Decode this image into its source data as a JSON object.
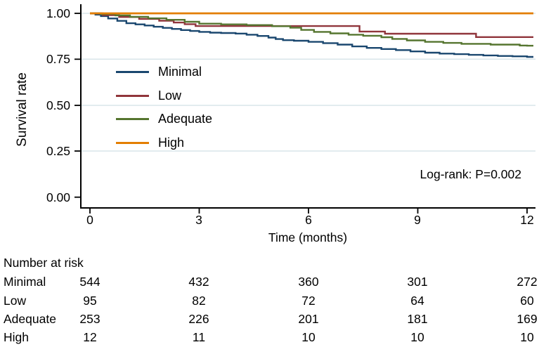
{
  "figure": {
    "ylabel": "Survival rate",
    "xlabel": "Time (months)",
    "annotation": "Log-rank: P=0.002",
    "y_tick_labels": [
      "1.00",
      "0.75",
      "0.50",
      "0.25",
      "0.00"
    ],
    "x_tick_labels": [
      "0",
      "3",
      "6",
      "9",
      "12"
    ]
  },
  "legend": {
    "items": [
      {
        "label": "Minimal"
      },
      {
        "label": "Low"
      },
      {
        "label": "Adequate"
      },
      {
        "label": "High"
      }
    ]
  },
  "risk_table": {
    "title": "Number at risk",
    "time_points": [
      0,
      3,
      6,
      9,
      12
    ],
    "rows": [
      {
        "label": "Minimal",
        "values": [
          544,
          432,
          360,
          301,
          272
        ]
      },
      {
        "label": "Low",
        "values": [
          95,
          82,
          72,
          64,
          60
        ]
      },
      {
        "label": "Adequate",
        "values": [
          253,
          226,
          201,
          181,
          169
        ]
      },
      {
        "label": "High",
        "values": [
          12,
          11,
          10,
          10,
          10
        ]
      }
    ]
  },
  "chart_data": {
    "type": "line",
    "subtype": "kaplan-meier-step",
    "title": "",
    "xlabel": "Time (months)",
    "ylabel": "Survival rate",
    "xlim": [
      0,
      12
    ],
    "ylim": [
      0.0,
      1.0
    ],
    "x_ticks": [
      0,
      3,
      6,
      9,
      12
    ],
    "y_ticks": [
      0.0,
      0.25,
      0.5,
      0.75,
      1.0
    ],
    "grid": "horizontal",
    "gridline_color": "#d9e6ea",
    "legend_position": "inside-upper-left",
    "annotation": "Log-rank: P=0.002",
    "series": [
      {
        "name": "Minimal",
        "color": "#1a476f",
        "points": [
          [
            0,
            1.0
          ],
          [
            0.15,
            0.993
          ],
          [
            0.3,
            0.985
          ],
          [
            0.5,
            0.972
          ],
          [
            0.75,
            0.959
          ],
          [
            1,
            0.946
          ],
          [
            1.25,
            0.94
          ],
          [
            1.5,
            0.934
          ],
          [
            1.75,
            0.927
          ],
          [
            2,
            0.921
          ],
          [
            2.25,
            0.915
          ],
          [
            2.5,
            0.909
          ],
          [
            2.75,
            0.904
          ],
          [
            3,
            0.899
          ],
          [
            3.3,
            0.895
          ],
          [
            3.6,
            0.893
          ],
          [
            4,
            0.89
          ],
          [
            4.3,
            0.884
          ],
          [
            4.6,
            0.877
          ],
          [
            4.9,
            0.868
          ],
          [
            5.1,
            0.86
          ],
          [
            5.3,
            0.854
          ],
          [
            5.6,
            0.851
          ],
          [
            6,
            0.845
          ],
          [
            6.4,
            0.838
          ],
          [
            6.8,
            0.83
          ],
          [
            7.2,
            0.82
          ],
          [
            7.6,
            0.812
          ],
          [
            8,
            0.806
          ],
          [
            8.4,
            0.8
          ],
          [
            8.8,
            0.793
          ],
          [
            9.2,
            0.786
          ],
          [
            9.6,
            0.781
          ],
          [
            10,
            0.778
          ],
          [
            10.4,
            0.774
          ],
          [
            10.8,
            0.771
          ],
          [
            11.2,
            0.768
          ],
          [
            11.6,
            0.766
          ],
          [
            12,
            0.763
          ]
        ]
      },
      {
        "name": "Low",
        "color": "#90353b",
        "points": [
          [
            0,
            1.0
          ],
          [
            0.35,
            0.99
          ],
          [
            0.8,
            0.98
          ],
          [
            1.35,
            0.97
          ],
          [
            1.9,
            0.96
          ],
          [
            2.3,
            0.95
          ],
          [
            2.6,
            0.941
          ],
          [
            2.9,
            0.931
          ],
          [
            7.4,
            0.901
          ],
          [
            8.1,
            0.889
          ],
          [
            10.6,
            0.871
          ]
        ]
      },
      {
        "name": "Adequate",
        "color": "#55752f",
        "points": [
          [
            0,
            1.0
          ],
          [
            0.3,
            0.996
          ],
          [
            0.7,
            0.989
          ],
          [
            1.1,
            0.981
          ],
          [
            1.6,
            0.973
          ],
          [
            2.1,
            0.965
          ],
          [
            2.6,
            0.954
          ],
          [
            3,
            0.944
          ],
          [
            3.6,
            0.94
          ],
          [
            4.3,
            0.936
          ],
          [
            5,
            0.93
          ],
          [
            5.5,
            0.922
          ],
          [
            5.8,
            0.91
          ],
          [
            6.15,
            0.899
          ],
          [
            6.6,
            0.891
          ],
          [
            7.1,
            0.884
          ],
          [
            7.5,
            0.878
          ],
          [
            8,
            0.87
          ],
          [
            8.3,
            0.861
          ],
          [
            8.7,
            0.853
          ],
          [
            9.2,
            0.845
          ],
          [
            9.7,
            0.839
          ],
          [
            10.2,
            0.834
          ],
          [
            11,
            0.83
          ],
          [
            11.8,
            0.825
          ],
          [
            12,
            0.824
          ]
        ]
      },
      {
        "name": "High",
        "color": "#e37e00",
        "points": [
          [
            0,
            1.0
          ],
          [
            12,
            1.0
          ]
        ]
      }
    ]
  }
}
